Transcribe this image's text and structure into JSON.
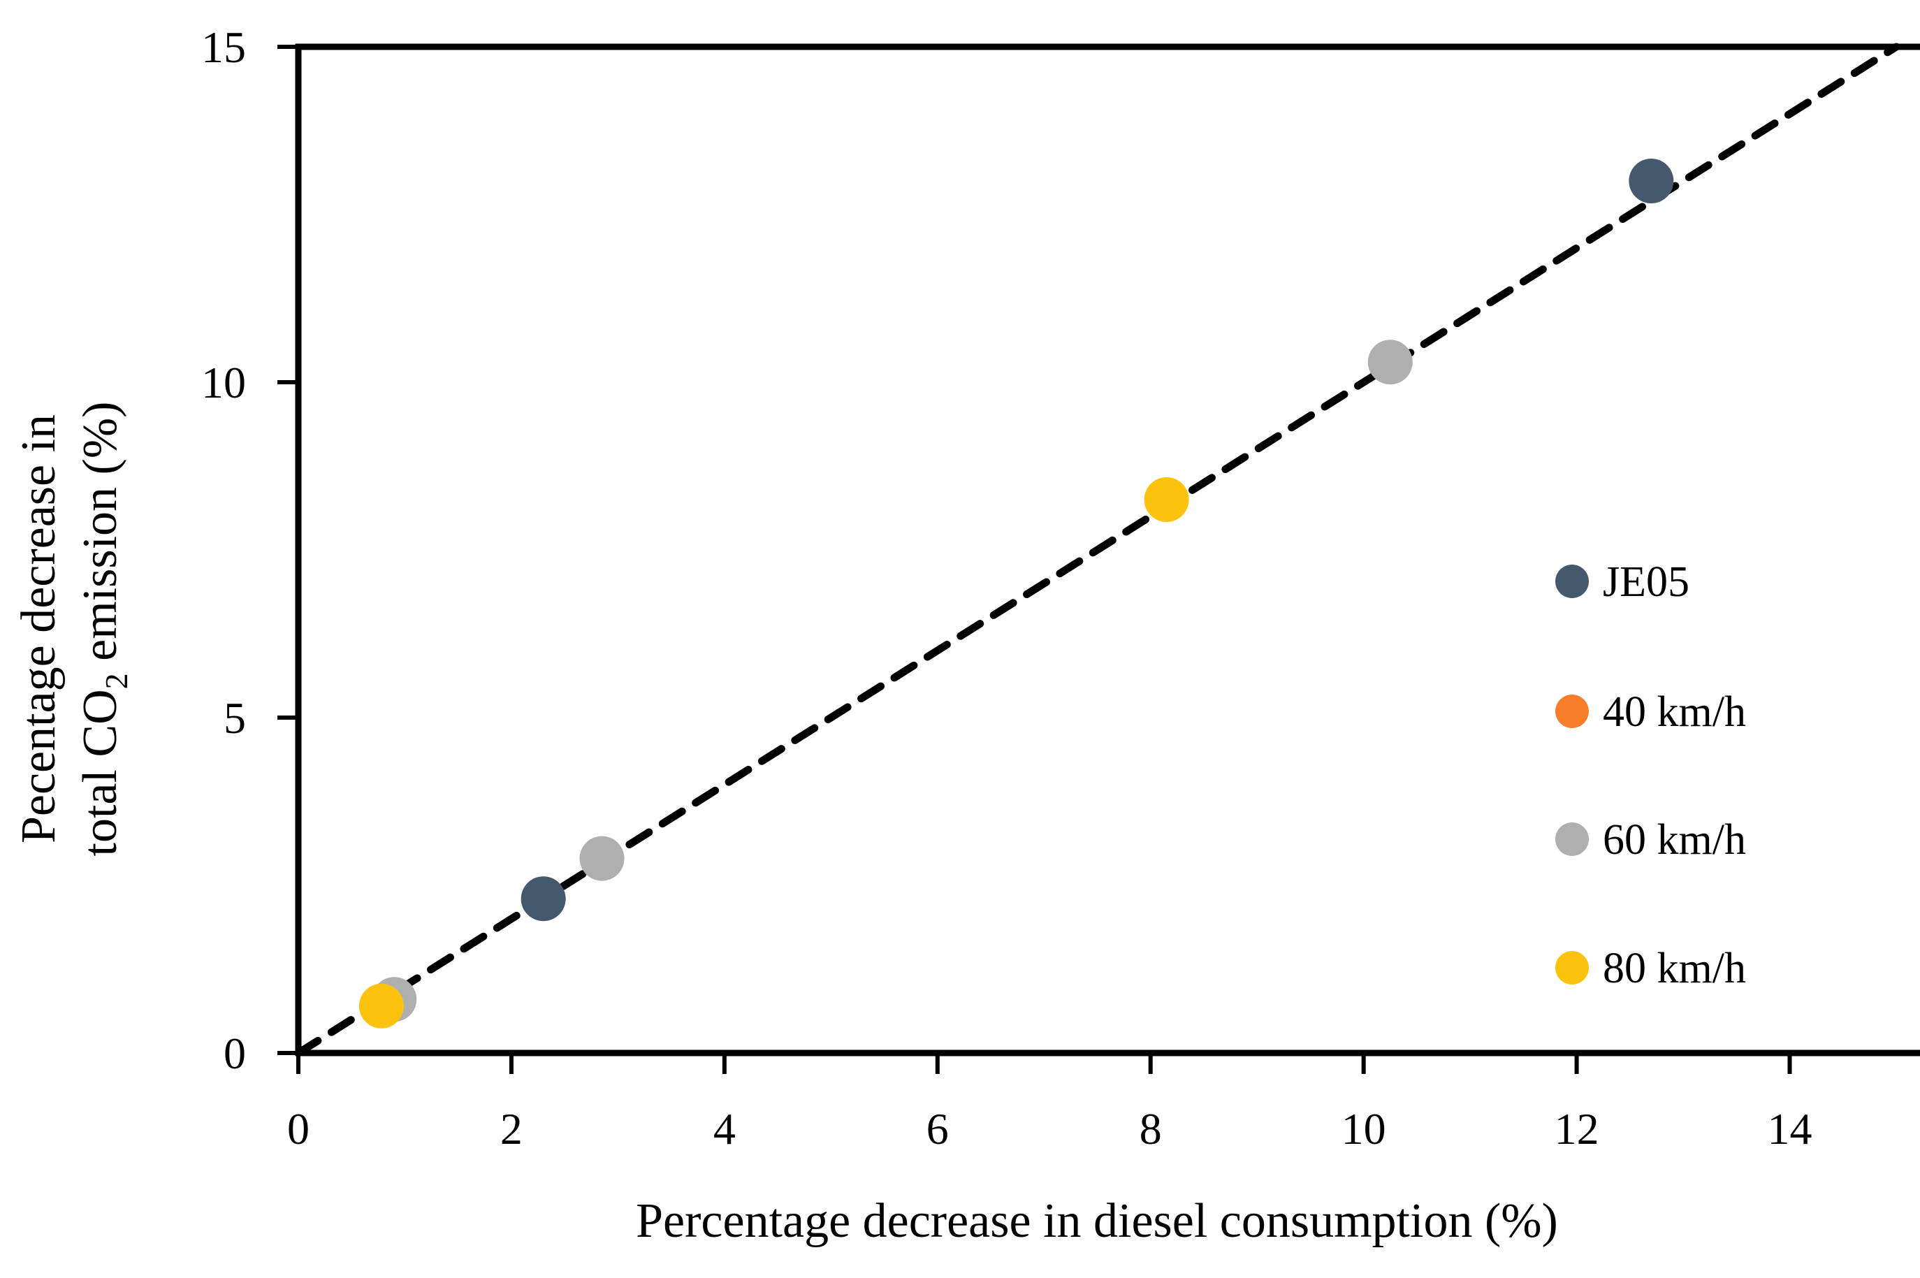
{
  "chart_data": {
    "type": "scatter",
    "title": "",
    "xlabel": "Percentage decrease in diesel consumption (%)",
    "ylabel_line1": "Pecentage decrease in",
    "ylabel_line2_pre": "total CO",
    "ylabel_line2_sub": "2",
    "ylabel_line2_post": " emission (%)",
    "xlim": [
      0,
      15
    ],
    "ylim": [
      0,
      15
    ],
    "x_ticks": [
      "0",
      "2",
      "4",
      "6",
      "8",
      "10",
      "12",
      "14"
    ],
    "x_tick_values": [
      0,
      2,
      4,
      6,
      8,
      10,
      12,
      14
    ],
    "y_ticks": [
      "0",
      "5",
      "10",
      "15"
    ],
    "y_tick_values": [
      0,
      5,
      10,
      15
    ],
    "grid": false,
    "identity_line": {
      "style": "dashed",
      "color": "#000000",
      "from": [
        0,
        0
      ],
      "to": [
        15,
        15
      ]
    },
    "series": [
      {
        "name": "JE05",
        "color": "#44586E",
        "points": [
          [
            2.3,
            2.3
          ],
          [
            12.7,
            13.0
          ]
        ]
      },
      {
        "name": "40 km/h",
        "color": "#F87E2B",
        "points": []
      },
      {
        "name": "60 km/h",
        "color": "#AFAFAF",
        "points": [
          [
            0.9,
            0.8
          ],
          [
            2.85,
            2.9
          ],
          [
            10.25,
            10.3
          ]
        ]
      },
      {
        "name": "80 km/h",
        "color": "#FDC20E",
        "points": [
          [
            0.78,
            0.7
          ],
          [
            8.15,
            8.25
          ]
        ]
      }
    ],
    "legend": {
      "position": "right-middle",
      "entries": [
        "JE05",
        "40 km/h",
        "60 km/h",
        "80 km/h"
      ]
    }
  }
}
